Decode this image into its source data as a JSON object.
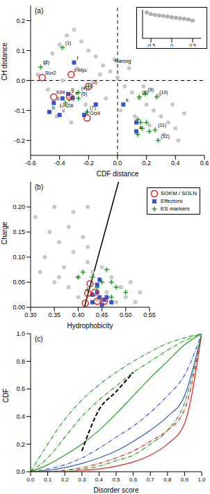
{
  "chart_data": [
    {
      "type": "scatter",
      "panel_label": "(a)",
      "x_label": "CDF distance",
      "y_label": "CH distance",
      "xlim": [
        -0.6,
        0.6
      ],
      "xticks": [
        -0.6,
        -0.4,
        -0.2,
        {
          "value": 0,
          "label": "0.0"
        },
        0.2,
        0.4,
        0.6
      ],
      "ylim": [
        -0.25,
        0.25
      ],
      "yticks": [
        -0.2,
        -0.1,
        {
          "value": 0,
          "label": "0.0"
        },
        0.1,
        0.2
      ],
      "ref_x": 0,
      "ref_y": 0,
      "annotations": [
        {
          "text": "Nanog",
          "x": -0.02,
          "y": 0.06
        },
        {
          "text": "Lin28",
          "x": -0.4,
          "y": -0.09
        }
      ],
      "series": [
        {
          "marker": "dot",
          "color": "#c8c8c8",
          "x": [
            -0.55,
            -0.5,
            -0.45,
            -0.4,
            -0.35,
            -0.3,
            -0.25,
            -0.2,
            -0.15,
            -0.1,
            -0.05,
            0,
            0.05,
            0.1,
            0.15,
            0.2,
            0.25,
            0.3,
            0.35,
            0.4,
            -0.48,
            -0.38,
            -0.28,
            -0.18,
            -0.08,
            0.02,
            0.12,
            0.22,
            0.32,
            0.42,
            -0.42,
            -0.32,
            -0.22,
            -0.12,
            -0.02,
            0.08,
            0.18,
            0.28,
            0.38,
            0.46
          ],
          "y": [
            0.02,
            0.06,
            0.09,
            0.12,
            0.15,
            0.17,
            0.13,
            0.1,
            0.08,
            0.05,
            0.03,
            0.01,
            -0.02,
            -0.04,
            -0.06,
            -0.08,
            -0.1,
            -0.12,
            -0.14,
            -0.16,
            -0.03,
            0,
            0.04,
            -0.02,
            -0.06,
            -0.1,
            -0.12,
            -0.15,
            -0.18,
            -0.2,
            -0.12,
            -0.14,
            -0.08,
            0.02,
            0.07,
            0.04,
            -0.02,
            -0.05,
            -0.08,
            -0.11
          ],
          "labels": null
        },
        {
          "marker": "plus",
          "color": "#22a022",
          "x": [
            -0.38,
            -0.53,
            -0.2,
            -0.27,
            -0.27,
            -0.36,
            -0.21,
            0.19,
            0.15,
            0.27,
            0.26,
            0.28,
            0.14,
            0.16,
            0.17,
            0.2,
            0.22,
            0.14
          ],
          "y": [
            0.11,
            0.045,
            -0.02,
            -0.04,
            -0.06,
            -0.075,
            -0.105,
            -0.045,
            -0.055,
            -0.055,
            -0.165,
            -0.2,
            -0.13,
            -0.14,
            -0.16,
            -0.14,
            -0.17,
            -0.18
          ],
          "labels": [
            "(1)",
            "(2)",
            "(3)",
            "(4)",
            "(5)",
            "(6)",
            "(7)",
            "(8)",
            "(9)",
            "(10)",
            "(11)",
            "(12)",
            null,
            null,
            null,
            null,
            null,
            null
          ]
        },
        {
          "marker": "square",
          "color": "#3355cc",
          "x": [
            -0.3,
            -0.34,
            -0.31,
            -0.44,
            -0.47,
            -0.4,
            -0.23,
            0.04,
            0.13,
            0.13,
            -0.15,
            -0.38
          ],
          "y": [
            0.06,
            -0.045,
            -0.058,
            -0.075,
            -0.105,
            -0.115,
            -0.115,
            -0.08,
            -0.17,
            -0.14,
            -0.08,
            -0.06
          ],
          "labels": [
            "f",
            "g",
            "e",
            "d",
            "b",
            "c",
            "j",
            "k",
            "a",
            null,
            null,
            null
          ]
        },
        {
          "marker": "circle",
          "color": "#dd2222",
          "x": [
            -0.52,
            -0.32,
            -0.44,
            -0.33,
            -0.21,
            -0.2
          ],
          "y": [
            0.01,
            0.02,
            -0.055,
            -0.055,
            -0.125,
            -0.02
          ],
          "labels": [
            "Sox2",
            "c-Myc",
            "Klf4",
            null,
            "Oct4",
            null
          ]
        }
      ]
    },
    {
      "type": "scatter",
      "tick_labels": "x",
      "xlim": [
        -0.7,
        0.7
      ],
      "xticks": [
        -0.5,
        0,
        0.5
      ],
      "ylim": [
        0,
        1
      ],
      "series": [
        {
          "marker": "dot",
          "color": "#b0b0b0",
          "x": [
            -0.6,
            -0.5,
            -0.4,
            -0.3,
            -0.2,
            -0.1,
            0,
            0.1,
            0.2,
            0.3,
            0.4,
            0.5
          ],
          "y": [
            0.9,
            0.85,
            0.82,
            0.8,
            0.78,
            0.76,
            0.74,
            0.72,
            0.7,
            0.68,
            0.66,
            0.62
          ],
          "labels": null
        }
      ]
    },
    {
      "type": "scatter",
      "panel_label": "(b)",
      "x_label": "Hydrophobicity",
      "y_label": "Charge",
      "legend": "top right",
      "xlim": [
        0.3,
        0.55
      ],
      "xticks": [
        {
          "value": 0.3,
          "label": "0.30"
        },
        0.35,
        {
          "value": 0.4,
          "label": "0.40"
        },
        0.45,
        {
          "value": 0.5,
          "label": "0.50"
        },
        0.55
      ],
      "ylim": [
        0,
        0.25
      ],
      "yticks": [
        {
          "value": 0,
          "label": "0.00"
        },
        0.05,
        {
          "value": 0.1,
          "label": "0.10"
        },
        0.15,
        {
          "value": 0.2,
          "label": "0.20"
        }
      ],
      "boundary": {
        "x": [
          0.413,
          0.485
        ],
        "y": [
          0,
          0.25
        ]
      },
      "series": [
        {
          "marker": "dot",
          "color": "#c8c8c8",
          "x": [
            0.31,
            0.33,
            0.35,
            0.36,
            0.37,
            0.38,
            0.39,
            0.4,
            0.41,
            0.42,
            0.43,
            0.35,
            0.38,
            0.4,
            0.44,
            0.46,
            0.48,
            0.5,
            0.52,
            0.47,
            0.49,
            0.51,
            0.53,
            0.45,
            0.42,
            0.36,
            0.34,
            0.32,
            0.39,
            0.42
          ],
          "y": [
            0.18,
            0.1,
            0.2,
            0.13,
            0.08,
            0.16,
            0.11,
            0.06,
            0.14,
            0.09,
            0.07,
            0.05,
            0.04,
            0.02,
            0.015,
            0.03,
            0.01,
            0.02,
            0.01,
            0.06,
            0.04,
            0.05,
            0.03,
            0.08,
            0.12,
            0.06,
            0.15,
            0.07,
            0.19,
            0.2
          ],
          "labels": null
        },
        {
          "name": "ES markers",
          "marker": "plus",
          "color": "#22a022",
          "x": [
            0.4,
            0.41,
            0.42,
            0.45,
            0.46,
            0.47,
            0.48,
            0.5,
            0.43,
            0.44,
            0.47
          ],
          "y": [
            0.06,
            0.07,
            0.035,
            0.05,
            0.075,
            0.05,
            0.04,
            0.03,
            0.06,
            0.04,
            0.02
          ],
          "labels": null
        },
        {
          "name": "Effectors",
          "marker": "square",
          "color": "#3355cc",
          "x": [
            0.43,
            0.43,
            0.44,
            0.445,
            0.45,
            0.455,
            0.46,
            0.47,
            0.44,
            0.445
          ],
          "y": [
            0.01,
            0.025,
            0.03,
            0.02,
            0.005,
            0.015,
            0.02,
            0.01,
            0.045,
            0.055
          ],
          "labels": null
        },
        {
          "name": "SOKM / SOLN",
          "marker": "circle",
          "color": "#dd2222",
          "x": [
            0.415,
            0.42,
            0.425,
            0.435,
            0.44,
            0.455
          ],
          "y": [
            0.008,
            0.028,
            0.047,
            0.03,
            0.012,
            0.012
          ],
          "labels": null
        }
      ]
    },
    {
      "type": "line",
      "panel_label": "(c)",
      "x_label": "Disorder score",
      "y_label": "CDF",
      "xlim": [
        0,
        1
      ],
      "xticks": [
        {
          "value": 0,
          "label": "0.0"
        },
        0.1,
        0.2,
        0.3,
        0.4,
        0.5,
        0.6,
        0.7,
        0.8,
        0.9,
        {
          "value": 1,
          "label": "1.0"
        }
      ],
      "ylim": [
        0,
        1
      ],
      "yticks": [
        {
          "value": 0,
          "label": "0.0"
        },
        0.2,
        0.4,
        0.6,
        0.8,
        {
          "value": 1,
          "label": "1.0"
        }
      ],
      "x": [
        0,
        0.1,
        0.2,
        0.3,
        0.4,
        0.5,
        0.6,
        0.7,
        0.8,
        0.9,
        1
      ],
      "series": [
        {
          "color": "#22a022",
          "line_style": "dashdot",
          "values": [
            0,
            0.2,
            0.38,
            0.52,
            0.63,
            0.72,
            0.8,
            0.87,
            0.93,
            0.97,
            1
          ]
        },
        {
          "color": "#22a022",
          "line_style": "dashdot",
          "values": [
            0,
            0.1,
            0.25,
            0.4,
            0.52,
            0.62,
            0.72,
            0.8,
            0.88,
            0.95,
            1
          ]
        },
        {
          "color": "#22a022",
          "line_style": "solid",
          "values": [
            0,
            0.05,
            0.12,
            0.2,
            0.3,
            0.42,
            0.55,
            0.68,
            0.8,
            0.92,
            1
          ]
        },
        {
          "color": "#000000",
          "line_style": "dashed",
          "values": [
            null,
            null,
            null,
            0.15,
            0.45,
            0.58,
            0.72,
            null,
            null,
            null,
            null
          ]
        },
        {
          "color": "#3355cc",
          "line_style": "dashdot",
          "values": [
            0,
            0.02,
            0.05,
            0.1,
            0.17,
            0.25,
            0.33,
            0.43,
            0.55,
            0.7,
            1
          ]
        },
        {
          "color": "#3355cc",
          "line_style": "solid",
          "values": [
            0,
            0.01,
            0.03,
            0.06,
            0.1,
            0.15,
            0.22,
            0.3,
            0.4,
            0.55,
            1
          ]
        },
        {
          "color": "#dd2222",
          "line_style": "dashdot",
          "values": [
            0,
            0,
            0.01,
            0.03,
            0.06,
            0.1,
            0.15,
            0.22,
            0.3,
            0.45,
            1
          ]
        },
        {
          "color": "#dd2222",
          "line_style": "solid",
          "values": [
            0,
            0,
            0,
            0.01,
            0.02,
            0.04,
            0.07,
            0.12,
            0.2,
            0.35,
            1
          ]
        },
        {
          "color": "#22a022",
          "line_style": "dashdot",
          "values": [
            0,
            0,
            0.01,
            0.02,
            0.04,
            0.08,
            0.12,
            0.2,
            0.3,
            0.5,
            1
          ]
        }
      ]
    }
  ]
}
